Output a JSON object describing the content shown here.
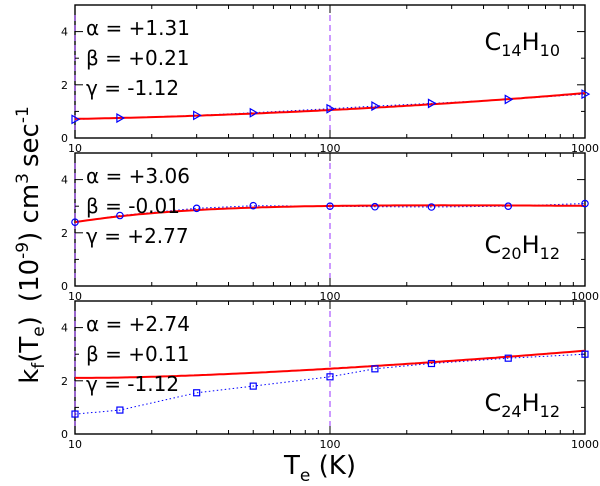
{
  "figure": {
    "ylabel_parts": {
      "kf": "k",
      "kf_sub": "f",
      "paren_open": "(T",
      "te_sub": "e",
      "paren_close": ")",
      "units_a": "(10",
      "units_a_sup": "-9",
      "units_b": ") cm",
      "units_b_sup": "3",
      "units_c": "sec",
      "units_c_sup": "-1"
    },
    "xlabel_parts": {
      "main": "T",
      "sub": "e",
      "rest": " (K)"
    }
  },
  "chart_data": [
    {
      "type": "line",
      "molecule": {
        "main1": "C",
        "sub1": "14",
        "main2": "H",
        "sub2": "10"
      },
      "params": [
        "α = +1.31",
        "β = +0.21",
        "γ = -1.12"
      ],
      "x_scale": "log",
      "xlim": [
        10,
        1000
      ],
      "ylim": [
        0,
        5
      ],
      "x_ticks": [
        "10",
        "100",
        "1000"
      ],
      "y_ticks": [
        "0",
        "2",
        "4"
      ],
      "marker": "triangle-right",
      "data_points": {
        "x": [
          10,
          15,
          30,
          50,
          100,
          150,
          250,
          500,
          1000
        ],
        "y": [
          0.7,
          0.75,
          0.85,
          0.95,
          1.1,
          1.2,
          1.3,
          1.45,
          1.65
        ]
      },
      "fit": {
        "alpha": 1.31,
        "beta": 0.21,
        "gamma": -1.12
      },
      "series_colors": {
        "fit": "#ff0000",
        "data": "#0000ff"
      }
    },
    {
      "type": "line",
      "molecule": {
        "main1": "C",
        "sub1": "20",
        "main2": "H",
        "sub2": "12"
      },
      "params": [
        "α = +3.06",
        "β = -0.01",
        "γ = +2.77"
      ],
      "x_scale": "log",
      "xlim": [
        10,
        1000
      ],
      "ylim": [
        0,
        5
      ],
      "x_ticks": [
        "10",
        "100",
        "1000"
      ],
      "y_ticks": [
        "0",
        "2",
        "4"
      ],
      "marker": "circle",
      "data_points": {
        "x": [
          10,
          15,
          30,
          50,
          100,
          150,
          250,
          500,
          1000
        ],
        "y": [
          2.4,
          2.65,
          2.92,
          3.02,
          3.0,
          2.98,
          2.97,
          3.0,
          3.1
        ]
      },
      "fit": {
        "alpha": 3.06,
        "beta": -0.01,
        "gamma": 2.77
      },
      "series_colors": {
        "fit": "#ff0000",
        "data": "#0000ff"
      }
    },
    {
      "type": "line",
      "molecule": {
        "main1": "C",
        "sub1": "24",
        "main2": "H",
        "sub2": "12"
      },
      "params": [
        "α = +2.74",
        "β = +0.11",
        "γ = -1.12"
      ],
      "x_scale": "log",
      "xlim": [
        10,
        1000
      ],
      "ylim": [
        0,
        5
      ],
      "x_ticks": [
        "10",
        "100",
        "1000"
      ],
      "y_ticks": [
        "0",
        "2",
        "4"
      ],
      "marker": "square",
      "data_points": {
        "x": [
          10,
          15,
          30,
          50,
          100,
          150,
          250,
          500,
          1000
        ],
        "y": [
          0.75,
          0.9,
          1.55,
          1.8,
          2.15,
          2.45,
          2.65,
          2.85,
          3.0
        ]
      },
      "fit": {
        "alpha": 2.74,
        "beta": 0.11,
        "gamma": -1.12
      },
      "series_colors": {
        "fit": "#ff0000",
        "data": "#0000ff"
      }
    }
  ],
  "reference_lines": {
    "x": [
      10,
      100
    ],
    "color": "#9933ff"
  }
}
